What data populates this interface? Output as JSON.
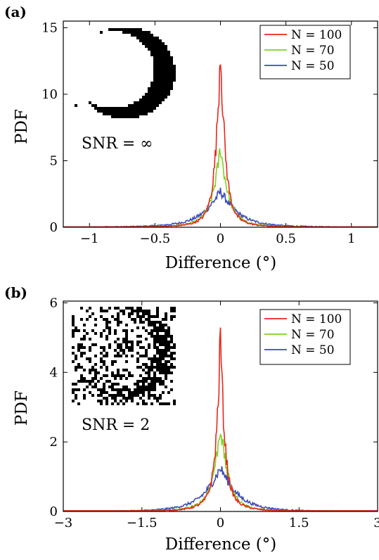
{
  "chart_data": [
    {
      "type": "line",
      "panel_label": "(a)",
      "xlabel": "Difference (°)",
      "ylabel": "PDF",
      "xlim": [
        -1.2,
        1.2
      ],
      "ylim": [
        0,
        15.5
      ],
      "xticks": [
        -1,
        -0.5,
        0,
        0.5,
        1
      ],
      "xtick_labels": [
        "−1",
        "−0.5",
        "0",
        "0.5",
        "1"
      ],
      "yticks": [
        0,
        5,
        10,
        15
      ],
      "ytick_labels": [
        "0",
        "5",
        "10",
        "15"
      ],
      "grid": false,
      "legend_position": "top-right",
      "inset_label": "SNR = ∞",
      "inset_image": "crescent-binary-image",
      "series": [
        {
          "name": "N = 100",
          "color": "#e8261c",
          "peak": 13.5,
          "width": 0.03,
          "tail_scale": 0.055,
          "tail_amp": 1.2
        },
        {
          "name": "N = 70",
          "color": "#7ed321",
          "peak": 5.9,
          "width": 0.05,
          "tail_scale": 0.08,
          "tail_amp": 0.9
        },
        {
          "name": "N = 50",
          "color": "#3b4cb8",
          "peak": 2.6,
          "width": 0.12,
          "tail_scale": 0.14,
          "tail_amp": 0.6
        }
      ]
    },
    {
      "type": "line",
      "panel_label": "(b)",
      "xlabel": "Difference (°)",
      "ylabel": "PDF",
      "xlim": [
        -3,
        3
      ],
      "ylim": [
        0,
        6.05
      ],
      "xticks": [
        -3,
        -1.5,
        0,
        1.5,
        3
      ],
      "xtick_labels": [
        "−3",
        "−1.5",
        "0",
        "1.5",
        "3"
      ],
      "yticks": [
        0,
        2,
        4,
        6
      ],
      "ytick_labels": [
        "0",
        "2",
        "4",
        "6"
      ],
      "grid": false,
      "legend_position": "top-right",
      "inset_label": "SNR = 2",
      "inset_image": "noisy-binary-image",
      "series": [
        {
          "name": "N = 100",
          "color": "#e8261c",
          "peak": 5.1,
          "width": 0.06,
          "tail_scale": 0.14,
          "tail_amp": 0.5
        },
        {
          "name": "N = 70",
          "color": "#7ed321",
          "peak": 2.4,
          "width": 0.12,
          "tail_scale": 0.2,
          "tail_amp": 0.4
        },
        {
          "name": "N = 50",
          "color": "#3b4cb8",
          "peak": 1.2,
          "width": 0.3,
          "tail_scale": 0.32,
          "tail_amp": 0.3
        }
      ]
    }
  ]
}
